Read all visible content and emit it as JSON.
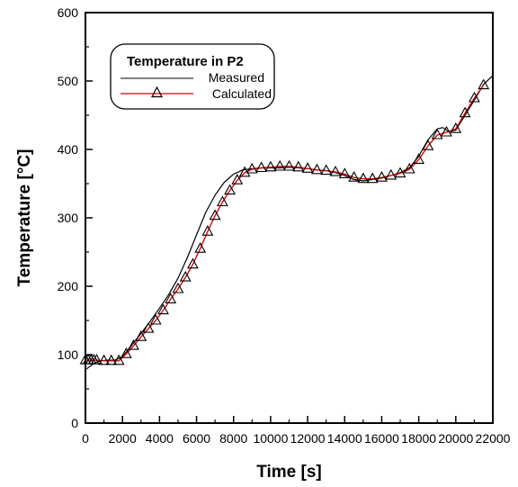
{
  "chart_data": {
    "type": "line",
    "title": "",
    "xlabel": "Time  [s]",
    "ylabel": "Temperature  [°C]",
    "xlim": [
      0,
      22000
    ],
    "ylim": [
      0,
      600
    ],
    "xticks": [
      "0",
      "2000",
      "4000",
      "6000",
      "8000",
      "10000",
      "12000",
      "14000",
      "16000",
      "18000",
      "20000",
      "22000"
    ],
    "yticks": [
      "0",
      "100",
      "200",
      "300",
      "400",
      "500",
      "600"
    ],
    "grid": false,
    "legend": {
      "title": "Temperature in P2",
      "placement": "top-left",
      "entries": [
        "Measured",
        "Calculated"
      ]
    },
    "series": [
      {
        "name": "Measured",
        "color": "#000000",
        "marker": "none",
        "x": [
          0,
          200,
          500,
          800,
          1200,
          1600,
          2000,
          2500,
          3000,
          3500,
          4000,
          4500,
          5000,
          5500,
          6000,
          6500,
          7000,
          7500,
          8000,
          8500,
          9000,
          9500,
          10000,
          10500,
          11000,
          11500,
          12000,
          12500,
          13000,
          13500,
          14000,
          14500,
          15000,
          15500,
          16000,
          16500,
          17000,
          17500,
          18000,
          18500,
          19000,
          19300,
          19600,
          20000,
          20500,
          21000,
          21500,
          22000
        ],
        "y": [
          78,
          82,
          88,
          91,
          92,
          92,
          97,
          114,
          131,
          149,
          168,
          188,
          212,
          242,
          275,
          308,
          333,
          352,
          364,
          370,
          372,
          373,
          373,
          373,
          374,
          373,
          372,
          370,
          369,
          366,
          362,
          356,
          354,
          356,
          358,
          362,
          366,
          373,
          390,
          414,
          430,
          432,
          426,
          428,
          450,
          472,
          495,
          508
        ]
      },
      {
        "name": "Calculated",
        "color": "#e00000",
        "marker": "triangle",
        "x": [
          0,
          150,
          300,
          450,
          600,
          1000,
          1400,
          1800,
          2200,
          2600,
          3000,
          3400,
          3800,
          4200,
          4600,
          5000,
          5400,
          5800,
          6200,
          6600,
          7000,
          7400,
          7800,
          8200,
          8600,
          9000,
          9500,
          10000,
          10500,
          11000,
          11500,
          12000,
          12500,
          13000,
          13500,
          14000,
          14500,
          15000,
          15500,
          16000,
          16500,
          17000,
          17500,
          18000,
          18500,
          19000,
          19500,
          20000,
          20500,
          21000,
          21500
        ],
        "y": [
          92,
          92,
          92,
          92,
          92,
          91,
          91,
          91,
          101,
          113,
          126,
          138,
          150,
          165,
          181,
          196,
          213,
          232,
          255,
          280,
          303,
          323,
          340,
          355,
          366,
          371,
          373,
          374,
          375,
          375,
          374,
          372,
          370,
          369,
          367,
          364,
          359,
          357,
          357,
          359,
          362,
          365,
          371,
          385,
          405,
          421,
          425,
          430,
          453,
          475,
          494
        ]
      }
    ]
  }
}
